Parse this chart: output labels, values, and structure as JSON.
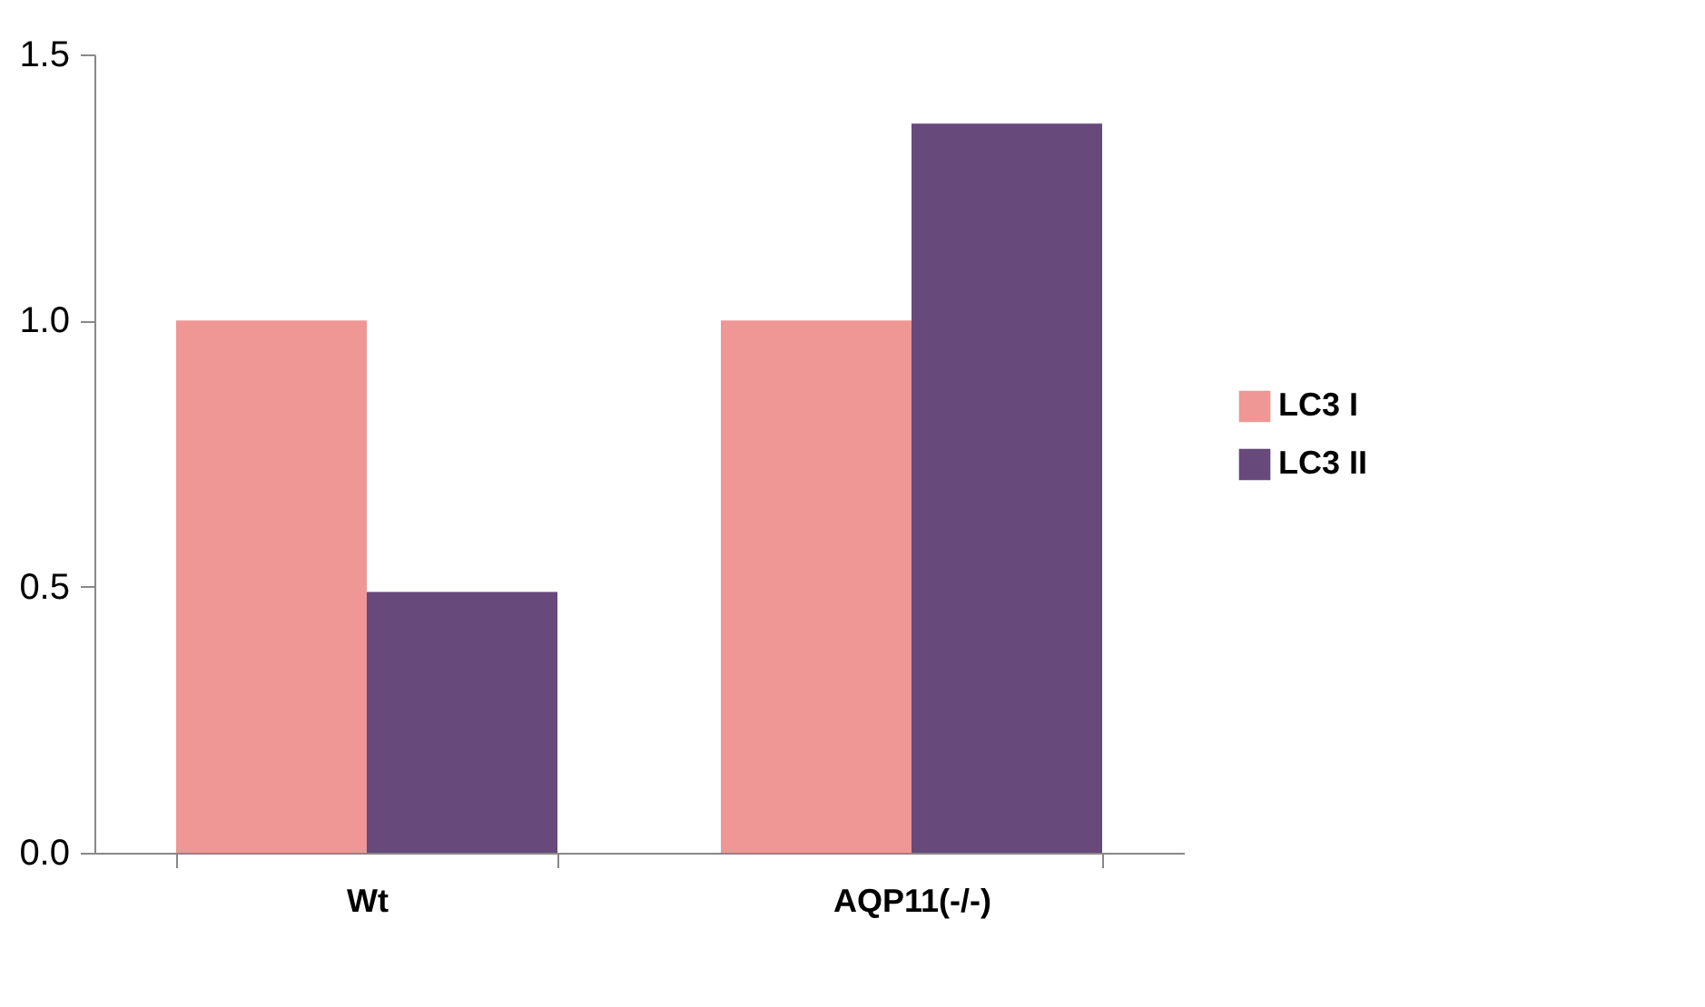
{
  "chart_data": {
    "type": "bar",
    "categories": [
      "Wt",
      "AQP11(-/-)"
    ],
    "series": [
      {
        "name": "LC3 I",
        "color": "#ee9795",
        "values": [
          1.0,
          1.0
        ]
      },
      {
        "name": "LC3 II",
        "color": "#67497c",
        "values": [
          0.49,
          1.37
        ]
      }
    ],
    "ylim": [
      0,
      1.5
    ],
    "yticks": [
      {
        "value": 0,
        "label": "0.0"
      },
      0.5,
      {
        "value": 1,
        "label": "1.0"
      },
      1.5
    ],
    "grid": false,
    "legend": "right"
  }
}
